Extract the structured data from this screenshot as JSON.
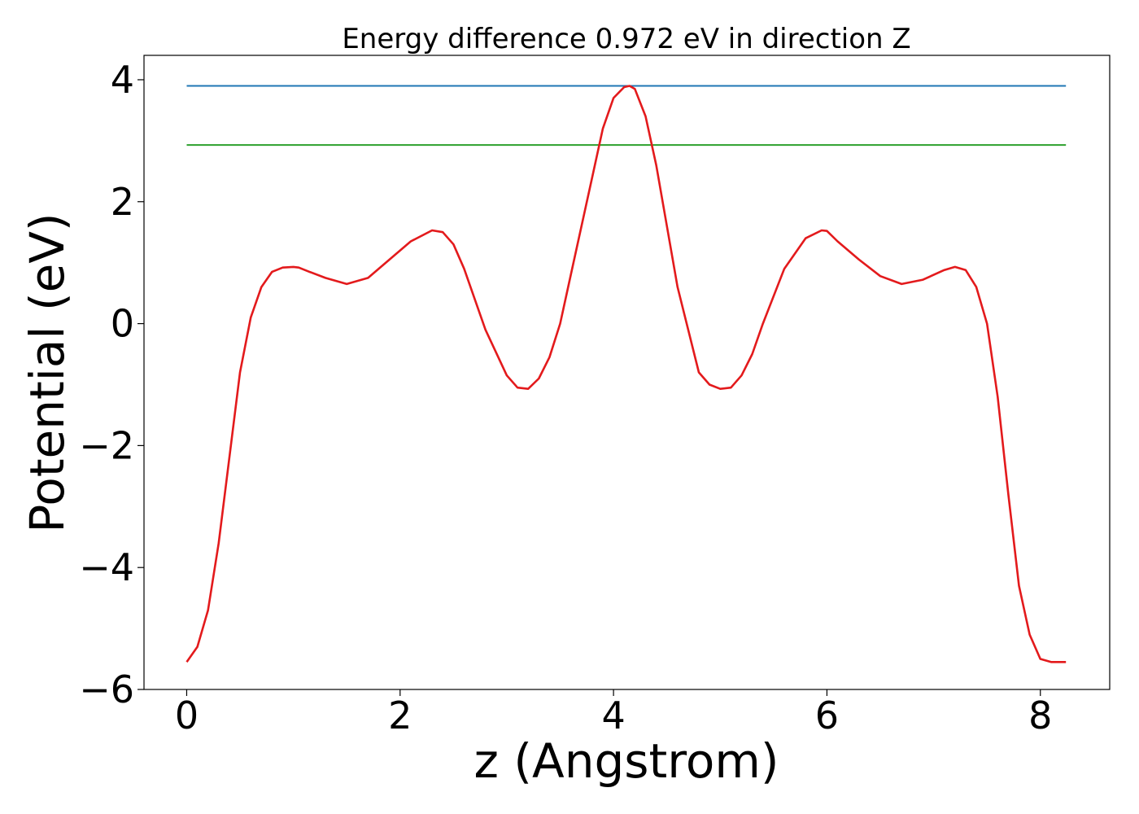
{
  "chart_data": {
    "type": "line",
    "title": "Energy difference 0.972 eV in direction Z",
    "xlabel": "z (Angstrom)",
    "ylabel": "Potential (eV)",
    "xlim": [
      -0.4,
      8.65
    ],
    "ylim": [
      -6.0,
      4.4
    ],
    "xticks": [
      0,
      2,
      4,
      6,
      8
    ],
    "yticks": [
      -6,
      -4,
      -2,
      0,
      2,
      4
    ],
    "xtick_labels": [
      "0",
      "2",
      "4",
      "6",
      "8"
    ],
    "ytick_labels": [
      "−6",
      "−4",
      "−2",
      "0",
      "2",
      "4"
    ],
    "grid": false,
    "legend": "none",
    "series": [
      {
        "color": "#1f77b4",
        "x": [
          0,
          8.24
        ],
        "y": [
          3.9,
          3.9
        ]
      },
      {
        "color": "#2ca02c",
        "x": [
          0,
          8.24
        ],
        "y": [
          2.93,
          2.93
        ]
      },
      {
        "color": "#e31a1c",
        "x": [
          0,
          0.1,
          0.2,
          0.3,
          0.4,
          0.5,
          0.6,
          0.7,
          0.8,
          0.9,
          1.0,
          1.05,
          1.15,
          1.3,
          1.5,
          1.7,
          1.9,
          2.1,
          2.3,
          2.4,
          2.5,
          2.6,
          2.8,
          3.0,
          3.1,
          3.2,
          3.3,
          3.4,
          3.5,
          3.6,
          3.8,
          3.9,
          4.0,
          4.1,
          4.15,
          4.2,
          4.3,
          4.4,
          4.5,
          4.6,
          4.8,
          4.9,
          5.0,
          5.1,
          5.2,
          5.3,
          5.4,
          5.6,
          5.8,
          5.95,
          6.0,
          6.1,
          6.3,
          6.5,
          6.7,
          6.9,
          7.1,
          7.2,
          7.3,
          7.4,
          7.5,
          7.6,
          7.7,
          7.8,
          7.9,
          8.0,
          8.1,
          8.24
        ],
        "y": [
          -5.55,
          -5.3,
          -4.7,
          -3.6,
          -2.2,
          -0.8,
          0.1,
          0.6,
          0.85,
          0.92,
          0.93,
          0.92,
          0.85,
          0.75,
          0.65,
          0.75,
          1.05,
          1.35,
          1.53,
          1.5,
          1.3,
          0.9,
          -0.1,
          -0.85,
          -1.05,
          -1.07,
          -0.9,
          -0.55,
          0.0,
          0.8,
          2.4,
          3.2,
          3.7,
          3.88,
          3.9,
          3.85,
          3.4,
          2.6,
          1.6,
          0.6,
          -0.8,
          -1.0,
          -1.07,
          -1.05,
          -0.85,
          -0.5,
          0.0,
          0.9,
          1.4,
          1.53,
          1.52,
          1.35,
          1.05,
          0.78,
          0.65,
          0.72,
          0.88,
          0.93,
          0.88,
          0.6,
          0.0,
          -1.2,
          -2.8,
          -4.3,
          -5.1,
          -5.5,
          -5.55,
          -5.55
        ]
      }
    ]
  }
}
